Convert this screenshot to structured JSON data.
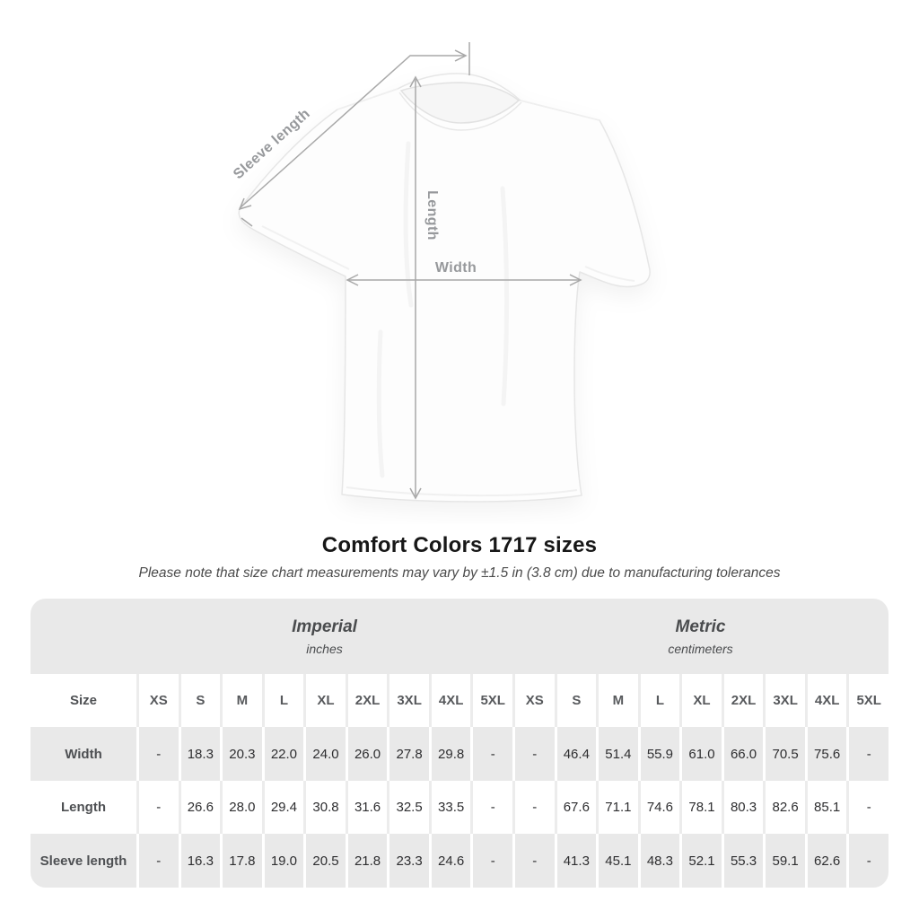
{
  "diagram": {
    "sleeve_label": "Sleeve length",
    "length_label": "Length",
    "width_label": "Width",
    "line_color": "#a8a8a8",
    "label_color": "#97999c"
  },
  "heading": {
    "title": "Comfort Colors 1717 sizes",
    "subtitle": "Please note that size chart measurements may vary by ±1.5 in (3.8 cm) due to manufacturing tolerances"
  },
  "table": {
    "corner_label": "Size",
    "sections": [
      {
        "id": "imperial",
        "title": "Imperial",
        "unit": "inches"
      },
      {
        "id": "metric",
        "title": "Metric",
        "unit": "centimeters"
      }
    ],
    "sizes": [
      "XS",
      "S",
      "M",
      "L",
      "XL",
      "2XL",
      "3XL",
      "4XL",
      "5XL"
    ],
    "rows": [
      {
        "label": "Width",
        "imperial": [
          "-",
          "18.3",
          "20.3",
          "22.0",
          "24.0",
          "26.0",
          "27.8",
          "29.8",
          "-"
        ],
        "metric": [
          "-",
          "46.4",
          "51.4",
          "55.9",
          "61.0",
          "66.0",
          "70.5",
          "75.6",
          "-"
        ]
      },
      {
        "label": "Length",
        "imperial": [
          "-",
          "26.6",
          "28.0",
          "29.4",
          "30.8",
          "31.6",
          "32.5",
          "33.5",
          "-"
        ],
        "metric": [
          "-",
          "67.6",
          "71.1",
          "74.6",
          "78.1",
          "80.3",
          "82.6",
          "85.1",
          "-"
        ]
      },
      {
        "label": "Sleeve length",
        "imperial": [
          "-",
          "16.3",
          "17.8",
          "19.0",
          "20.5",
          "21.8",
          "23.3",
          "24.6",
          "-"
        ],
        "metric": [
          "-",
          "41.3",
          "45.1",
          "48.3",
          "52.1",
          "55.3",
          "59.1",
          "62.6",
          "-"
        ]
      }
    ],
    "colors": {
      "band": "#e9e9e9",
      "separator_on_white": "#ececec",
      "row_gray": "#e9e9e9"
    }
  }
}
